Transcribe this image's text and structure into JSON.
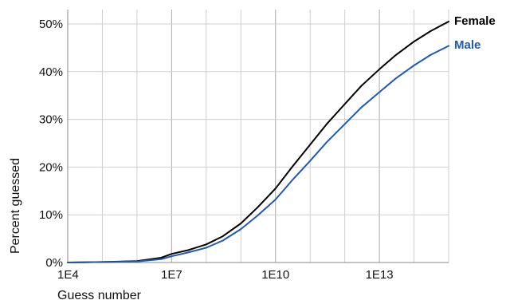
{
  "chart_data": {
    "type": "line",
    "xlabel": "Guess number",
    "ylabel": "Percent guessed",
    "x_scale": "log10",
    "xlim": [
      10000,
      1000000000000000.0
    ],
    "ylim": [
      0,
      52
    ],
    "x_tick_values": [
      10000,
      10000000,
      10000000000,
      10000000000000
    ],
    "x_tick_labels": [
      "1E4",
      "1E7",
      "1E10",
      "1E13"
    ],
    "y_tick_values": [
      0,
      10,
      20,
      30,
      40,
      50
    ],
    "y_tick_labels": [
      "0%",
      "10%",
      "20%",
      "30%",
      "40%",
      "50%"
    ],
    "grid": true,
    "legend": "right-end labels",
    "series": [
      {
        "name": "Female",
        "color": "#000000",
        "x": [
          10000,
          100000,
          1000000,
          5000000,
          10000000,
          30000000,
          100000000,
          300000000,
          1000000000,
          3000000000,
          10000000000,
          30000000000,
          100000000000,
          300000000000,
          1000000000000,
          3000000000000,
          10000000000000,
          30000000000000,
          100000000000000,
          300000000000000,
          1000000000000000
        ],
        "y": [
          0,
          0.1,
          0.3,
          1.0,
          1.8,
          2.6,
          3.8,
          5.5,
          8.2,
          11.5,
          15.5,
          20.0,
          24.7,
          29.0,
          33.2,
          37.0,
          40.5,
          43.5,
          46.3,
          48.5,
          50.5
        ]
      },
      {
        "name": "Male",
        "color": "#2059b3",
        "x": [
          10000,
          100000,
          1000000,
          5000000,
          10000000,
          30000000,
          100000000,
          300000000,
          1000000000,
          3000000000,
          10000000000,
          30000000000,
          100000000000,
          300000000000,
          1000000000000,
          3000000000000,
          10000000000000,
          30000000000000,
          100000000000000,
          300000000000000,
          1000000000000000
        ],
        "y": [
          0,
          0.1,
          0.2,
          0.7,
          1.3,
          2.1,
          3.1,
          4.6,
          7.0,
          9.8,
          13.2,
          17.2,
          21.3,
          25.2,
          29.0,
          32.5,
          35.7,
          38.6,
          41.3,
          43.5,
          45.4
        ]
      }
    ]
  }
}
